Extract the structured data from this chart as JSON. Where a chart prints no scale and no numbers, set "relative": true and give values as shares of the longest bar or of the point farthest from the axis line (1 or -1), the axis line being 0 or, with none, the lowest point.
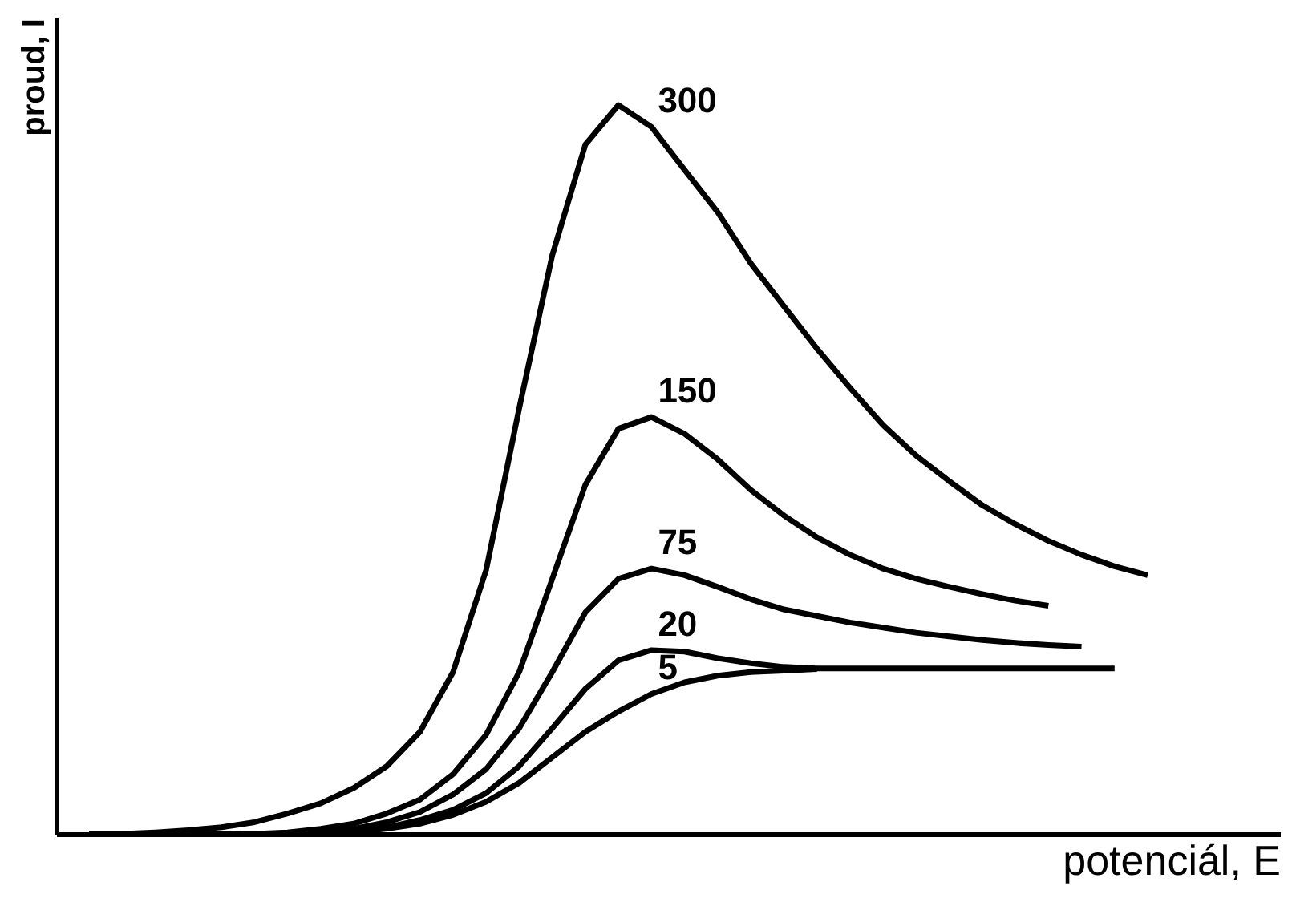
{
  "chart_data": {
    "type": "line",
    "relative": true,
    "xlabel": "potenciál, E",
    "ylabel": "proud, I",
    "categories": [
      null,
      null,
      null,
      null,
      null,
      null,
      null,
      null,
      null,
      null,
      null,
      null,
      null,
      null,
      null,
      null,
      null,
      null,
      null,
      null,
      null,
      null,
      null,
      null,
      null,
      null,
      null,
      null,
      null,
      null,
      null,
      null,
      null
    ],
    "series": [
      {
        "name": "300",
        "color": "#000000",
        "values": [
          0,
          0,
          0.002,
          0.005,
          0.009,
          0.016,
          0.028,
          0.042,
          0.063,
          0.093,
          0.14,
          0.222,
          0.362,
          0.584,
          0.794,
          0.946,
          1,
          0.97,
          0.911,
          0.853,
          0.783,
          0.724,
          0.666,
          0.612,
          0.561,
          0.519,
          0.484,
          0.451,
          0.425,
          0.402,
          0.383,
          0.367,
          0.355
        ]
      },
      {
        "name": "150",
        "color": "#000000",
        "values": [
          0,
          0,
          0,
          0,
          0,
          0,
          0.002,
          0.007,
          0.014,
          0.028,
          0.047,
          0.082,
          0.136,
          0.222,
          0.35,
          0.479,
          0.556,
          0.572,
          0.549,
          0.514,
          0.472,
          0.437,
          0.407,
          0.383,
          0.364,
          0.35,
          0.339,
          0.329,
          0.32,
          0.313,
          null,
          null,
          null
        ]
      },
      {
        "name": "75",
        "color": "#000000",
        "values": [
          0,
          0,
          0,
          0,
          0,
          0,
          0,
          0.002,
          0.007,
          0.016,
          0.03,
          0.054,
          0.089,
          0.145,
          0.222,
          0.304,
          0.35,
          0.364,
          0.355,
          0.339,
          0.322,
          0.308,
          0.299,
          0.29,
          0.283,
          0.276,
          0.271,
          0.266,
          0.262,
          0.259,
          0.257,
          null,
          null
        ]
      },
      {
        "name": "20",
        "color": "#000000",
        "values": [
          0,
          0,
          0,
          0,
          0,
          0,
          0,
          0,
          0.002,
          0.009,
          0.019,
          0.033,
          0.056,
          0.093,
          0.145,
          0.199,
          0.238,
          0.252,
          0.25,
          0.241,
          0.234,
          0.229,
          0.227,
          0.227,
          0.227,
          0.227,
          0.227,
          0.227,
          0.227,
          0.227,
          0.227,
          0.227,
          null
        ]
      },
      {
        "name": "5",
        "color": "#000000",
        "values": [
          0,
          0,
          0,
          0,
          0,
          0,
          0,
          0,
          0.002,
          0.007,
          0.014,
          0.026,
          0.044,
          0.07,
          0.105,
          0.14,
          0.168,
          0.192,
          0.208,
          0.217,
          0.222,
          0.224,
          0.226,
          null,
          null,
          null,
          null,
          null,
          null,
          null,
          null,
          null,
          null
        ]
      }
    ],
    "legend": false,
    "grid": false
  }
}
